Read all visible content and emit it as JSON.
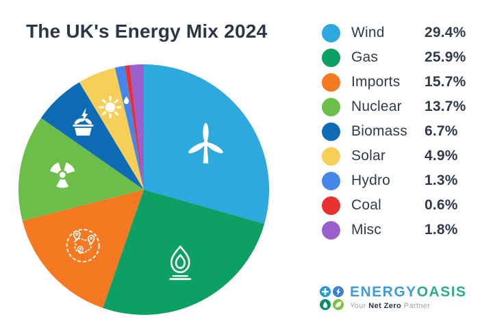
{
  "title": "The UK's Energy Mix 2024",
  "chart_data": {
    "type": "pie",
    "title": "The UK's Energy Mix 2024",
    "legend_position": "right",
    "start_angle_deg": 0,
    "direction": "clockwise",
    "units": "%",
    "segments": [
      {
        "label": "Wind",
        "value": 29.4,
        "display": "29.4%",
        "color": "#2EA9E0",
        "icon": "wind-turbine"
      },
      {
        "label": "Gas",
        "value": 25.9,
        "display": "25.9%",
        "color": "#0CA065",
        "icon": "gas-flame"
      },
      {
        "label": "Imports",
        "value": 15.7,
        "display": "15.7%",
        "color": "#F57920",
        "icon": "globe-imports"
      },
      {
        "label": "Nuclear",
        "value": 13.7,
        "display": "13.7%",
        "color": "#6CBE4B",
        "icon": "radiation"
      },
      {
        "label": "Biomass",
        "value": 6.7,
        "display": "6.7%",
        "color": "#0E6CB4",
        "icon": "biomass-plant"
      },
      {
        "label": "Solar",
        "value": 4.9,
        "display": "4.9%",
        "color": "#F6CE58",
        "icon": "sun"
      },
      {
        "label": "Hydro",
        "value": 1.3,
        "display": "1.3%",
        "color": "#4486EA",
        "icon": "water-drop"
      },
      {
        "label": "Coal",
        "value": 0.6,
        "display": "0.6%",
        "color": "#E9302F",
        "icon": null
      },
      {
        "label": "Misc",
        "value": 1.8,
        "display": "1.8%",
        "color": "#9B5FCC",
        "icon": null
      }
    ]
  },
  "logo": {
    "brand_primary": "ENERGY",
    "brand_secondary": "OASIS",
    "tagline_prefix": "Your",
    "tagline_emphasis": "Net Zero",
    "tagline_suffix": "Partner",
    "colors": {
      "primary": "#3E9BD6",
      "secondary": "#2BAA8C"
    },
    "tiles": [
      {
        "name": "plus",
        "color": "#1E9CD7"
      },
      {
        "name": "lightning",
        "color": "#3F7FD9"
      },
      {
        "name": "water-drop",
        "color": "#0E8A6D"
      },
      {
        "name": "leaf",
        "color": "#7DC242"
      }
    ]
  }
}
